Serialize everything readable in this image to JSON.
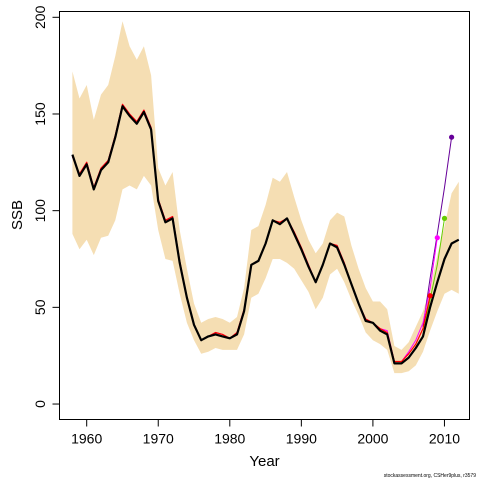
{
  "chart_data": {
    "type": "line",
    "xlabel": "Year",
    "ylabel": "SSB",
    "xlim": [
      1956.2,
      2013.5
    ],
    "ylim": [
      -8,
      203
    ],
    "x_ticks": [
      1960,
      1970,
      1980,
      1990,
      2000,
      2010
    ],
    "y_ticks": [
      0,
      50,
      100,
      150,
      200
    ],
    "grid": false,
    "footnote": "stockassessment.org, CSHer9plus, r3579",
    "colors": {
      "band": "#f5deb3",
      "main": "#000000",
      "retro1": "#ff0000",
      "retro2": "#ff00ff",
      "retro3": "#66cc00",
      "retro4": "#660099"
    },
    "confidence_band": {
      "x": [
        1958,
        1959,
        1960,
        1961,
        1962,
        1963,
        1964,
        1965,
        1966,
        1967,
        1968,
        1969,
        1970,
        1971,
        1972,
        1973,
        1974,
        1975,
        1976,
        1977,
        1978,
        1979,
        1980,
        1981,
        1982,
        1983,
        1984,
        1985,
        1986,
        1987,
        1988,
        1989,
        1990,
        1991,
        1992,
        1993,
        1994,
        1995,
        1996,
        1997,
        1998,
        1999,
        2000,
        2001,
        2002,
        2003,
        2004,
        2005,
        2006,
        2007,
        2008,
        2009,
        2010,
        2011,
        2012
      ],
      "upper": [
        172,
        158,
        165,
        147,
        160,
        165,
        180,
        198,
        185,
        178,
        185,
        170,
        122,
        113,
        120,
        90,
        70,
        52,
        42,
        44,
        45,
        44,
        42,
        45,
        60,
        90,
        92,
        103,
        117,
        115,
        120,
        107,
        95,
        85,
        78,
        83,
        95,
        99,
        97,
        82,
        70,
        60,
        53,
        53,
        49,
        30,
        28,
        32,
        40,
        48,
        60,
        77,
        92,
        109,
        115
      ],
      "lower": [
        88,
        80,
        85,
        77,
        86,
        87,
        95,
        111,
        113,
        111,
        118,
        113,
        90,
        75,
        74,
        57,
        42,
        33,
        26,
        27,
        29,
        28,
        28,
        28,
        36,
        55,
        57,
        65,
        75,
        75,
        73,
        70,
        64,
        58,
        49,
        55,
        67,
        70,
        63,
        54,
        46,
        37,
        33,
        31,
        28,
        16,
        16,
        17,
        20,
        27,
        38,
        48,
        57,
        59,
        57
      ]
    },
    "series": [
      {
        "x": [
          1958,
          1959,
          1960,
          1961,
          1962,
          1963,
          1964,
          1965,
          1966,
          1967,
          1968,
          1969,
          1970,
          1971,
          1972,
          1973,
          1974,
          1975,
          1976,
          1977,
          1978,
          1979,
          1980,
          1981,
          1982,
          1983,
          1984,
          1985,
          1986,
          1987,
          1988,
          1989,
          1990,
          1991,
          1992,
          1993,
          1994,
          1995,
          1996,
          1997,
          1998,
          1999,
          2000,
          2001,
          2002,
          2003,
          2004,
          2005,
          2006,
          2007,
          2008,
          2009,
          2010,
          2011,
          2012
        ],
        "values": [
          129,
          118,
          124,
          111,
          121,
          125,
          138,
          154,
          149,
          145,
          151,
          142,
          105,
          94,
          96,
          73,
          55,
          41,
          33,
          35,
          36,
          35,
          34,
          36,
          48,
          72,
          74,
          83,
          95,
          93,
          96,
          88,
          80,
          71,
          63,
          72,
          83,
          81,
          72,
          62,
          52,
          43,
          42,
          38,
          36,
          21,
          21,
          24,
          29,
          35,
          50,
          63,
          75,
          83,
          85
        ]
      },
      {
        "x": [
          1958,
          1959,
          1960,
          1961,
          1962,
          1963,
          1964,
          1965,
          1966,
          1967,
          1968,
          1969,
          1970,
          1971,
          1972,
          1973,
          1974,
          1975,
          1976,
          1977,
          1978,
          1979,
          1980,
          1981,
          1982,
          1983,
          1984,
          1985,
          1986,
          1987,
          1988,
          1989,
          1990,
          1991,
          1992,
          1993,
          1994,
          1995,
          1996,
          1997,
          1998,
          1999,
          2000,
          2001,
          2002,
          2003,
          2004,
          2005,
          2006,
          2007,
          2008
        ],
        "values": [
          128,
          119,
          125,
          112,
          122,
          126,
          139,
          155,
          150,
          146,
          152,
          143,
          106,
          95,
          97,
          74,
          55,
          41,
          33,
          35,
          37,
          36,
          34,
          37,
          49,
          72,
          74,
          83,
          95,
          94,
          96,
          89,
          81,
          72,
          63,
          72,
          83,
          82,
          73,
          62,
          52,
          44,
          42,
          39,
          37,
          22,
          22,
          26,
          31,
          39,
          56
        ],
        "end_marker": true
      },
      {
        "x": [
          1958,
          1959,
          1960,
          1961,
          1962,
          1963,
          1964,
          1965,
          1966,
          1967,
          1968,
          1969,
          1970,
          1971,
          1972,
          1973,
          1974,
          1975,
          1976,
          1977,
          1978,
          1979,
          1980,
          1981,
          1982,
          1983,
          1984,
          1985,
          1986,
          1987,
          1988,
          1989,
          1990,
          1991,
          1992,
          1993,
          1994,
          1995,
          1996,
          1997,
          1998,
          1999,
          2000,
          2001,
          2002,
          2003,
          2004,
          2005,
          2006,
          2007,
          2008,
          2009
        ],
        "values": [
          128,
          119,
          125,
          112,
          122,
          126,
          139,
          155,
          150,
          146,
          152,
          143,
          106,
          95,
          97,
          74,
          55,
          41,
          33,
          35,
          37,
          36,
          34,
          37,
          49,
          72,
          74,
          83,
          95,
          94,
          96,
          89,
          81,
          72,
          63,
          72,
          83,
          82,
          73,
          62,
          52,
          44,
          42,
          39,
          38,
          22,
          22,
          27,
          33,
          42,
          60,
          86
        ],
        "end_marker": true
      },
      {
        "x": [
          2007,
          2008,
          2009,
          2010
        ],
        "values": [
          36,
          54,
          72,
          96
        ],
        "end_marker": true
      },
      {
        "x": [
          2007,
          2008,
          2009,
          2010,
          2011
        ],
        "values": [
          40,
          65,
          88,
          112,
          138
        ],
        "end_marker": true
      }
    ]
  }
}
